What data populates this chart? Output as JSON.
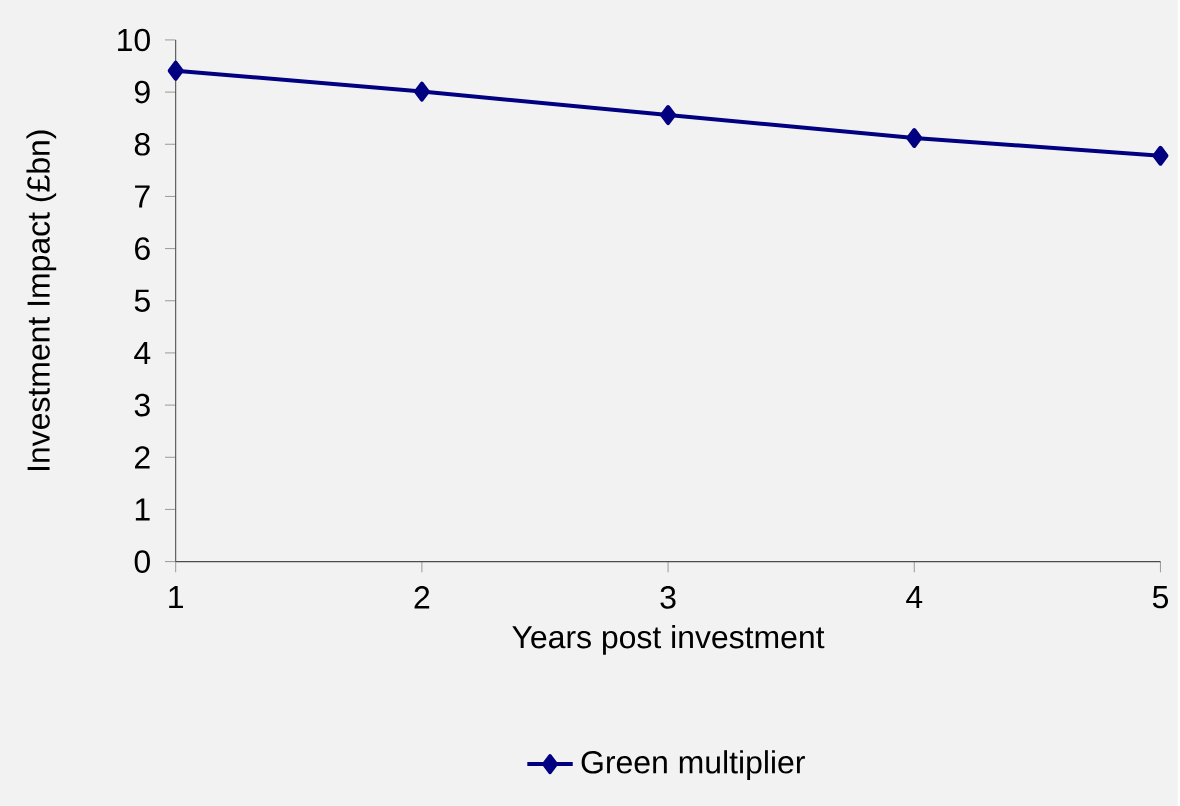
{
  "chart_data": {
    "type": "line",
    "xlabel": "Years post investment",
    "ylabel": "Investment Impact (£bn)",
    "x": [
      1,
      2,
      3,
      4,
      5
    ],
    "series": [
      {
        "name": "Green multiplier",
        "color": "#000080",
        "values": [
          9.41,
          9.01,
          8.56,
          8.12,
          7.78
        ]
      }
    ],
    "xlim": [
      1,
      5
    ],
    "xticks": [
      1,
      2,
      3,
      4,
      5
    ],
    "ylim": [
      0,
      10
    ],
    "yticks": [
      0,
      1,
      2,
      3,
      4,
      5,
      6,
      7,
      8,
      9,
      10
    ],
    "grid": false,
    "legend": "bottom",
    "marker": "diamond",
    "line_style": "solid"
  }
}
